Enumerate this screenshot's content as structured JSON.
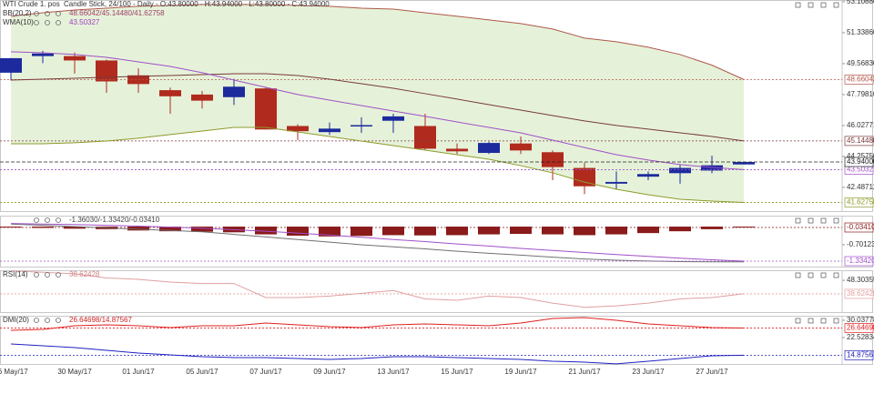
{
  "chart_data": [
    {
      "type": "candlestick",
      "title": "WTI Crude 1. pos",
      "subtitle": "Candle Stick, 24/100 - Daily - O:43.80000 - H:43.94000 - L:43.80000 - C:43.94000",
      "categories": [
        "26 May/17",
        null,
        "30 May/17",
        null,
        "01 Jun/17",
        null,
        "05 Jun/17",
        null,
        "07 Jun/17",
        null,
        "09 Jun/17",
        null,
        "13 Jun/17",
        null,
        "15 Jun/17",
        null,
        "19 Jun/17",
        null,
        "21 Jun/17",
        null,
        "23 Jun/17",
        null,
        "27 Jun/17",
        null
      ],
      "open": [
        49.05,
        50.0,
        50.0,
        49.75,
        48.9,
        48.05,
        47.8,
        47.65,
        48.15,
        46.0,
        45.65,
        46.0,
        46.3,
        46.0,
        44.7,
        44.46,
        45.0,
        44.5,
        43.6,
        42.7,
        43.1,
        43.3,
        43.45,
        43.8
      ],
      "high": [
        49.9,
        50.3,
        50.2,
        49.8,
        49.3,
        48.2,
        48.0,
        48.7,
        48.2,
        46.1,
        46.2,
        46.5,
        46.7,
        46.7,
        45.0,
        45.1,
        45.4,
        44.6,
        43.9,
        43.4,
        43.4,
        43.8,
        44.3,
        43.94
      ],
      "low": [
        48.6,
        49.6,
        49.0,
        47.9,
        47.9,
        46.7,
        47.0,
        47.2,
        45.8,
        45.2,
        45.5,
        45.6,
        45.6,
        44.6,
        44.4,
        44.4,
        44.4,
        42.9,
        42.1,
        42.4,
        42.9,
        42.7,
        43.3,
        43.8
      ],
      "close": [
        49.88,
        50.15,
        49.75,
        48.55,
        48.4,
        47.7,
        47.45,
        48.25,
        45.8,
        45.7,
        45.85,
        46.05,
        46.55,
        44.7,
        44.55,
        45.03,
        44.6,
        43.65,
        42.55,
        42.8,
        43.25,
        43.6,
        43.75,
        43.94
      ],
      "close_value_labels": [
        null,
        null,
        null,
        null,
        null,
        null,
        null,
        null,
        null,
        null,
        null,
        null,
        null,
        null,
        null,
        null,
        null,
        null,
        null,
        null,
        null,
        null,
        null,
        "43.94000"
      ],
      "up_color": "#1c2a9e",
      "down_color": "#b02a1e",
      "close_label_color": "#222222",
      "ylim": [
        41.13,
        53.21
      ],
      "yticks": [
        {
          "value": 53.1088,
          "label": "53.10880"
        },
        {
          "value": 51.3386,
          "label": "51.33860"
        },
        {
          "value": 49.5683,
          "label": "49.56830"
        },
        {
          "value": 47.7981,
          "label": "47.79810"
        },
        {
          "value": 46.02771,
          "label": "46.02771"
        },
        {
          "value": 44.2575,
          "label": "44.25750"
        },
        {
          "value": 42.48712,
          "label": "42.48712"
        }
      ],
      "indicators": [
        {
          "name": "BB(20,2)",
          "readout": "48.66042/45.14480/41.62758",
          "color": "#a0406a",
          "fill": "#e5f2d9",
          "lines": [
            {
              "color": "#b0584a",
              "values": [
                52.28,
                52.48,
                52.64,
                52.74,
                52.85,
                52.9,
                52.95,
                52.95,
                52.95,
                52.9,
                52.85,
                52.74,
                52.69,
                52.48,
                52.28,
                52.07,
                51.86,
                51.55,
                51.03,
                50.82,
                50.51,
                50.09,
                49.48,
                48.66042
              ],
              "value_labels": [
                null,
                null,
                null,
                null,
                null,
                null,
                null,
                null,
                null,
                null,
                null,
                null,
                null,
                null,
                null,
                null,
                null,
                null,
                null,
                null,
                null,
                null,
                null,
                "48.66042"
              ]
            },
            {
              "color": "#7a3a3a",
              "values": [
                48.63,
                48.68,
                48.73,
                48.79,
                48.84,
                48.89,
                48.94,
                48.99,
                48.99,
                48.89,
                48.68,
                48.42,
                48.16,
                47.85,
                47.54,
                47.22,
                46.91,
                46.6,
                46.29,
                46.03,
                45.82,
                45.61,
                45.4,
                45.1448
              ],
              "value_labels": [
                null,
                null,
                null,
                null,
                null,
                null,
                null,
                null,
                null,
                null,
                null,
                null,
                null,
                null,
                null,
                null,
                null,
                null,
                null,
                null,
                null,
                null,
                null,
                "45.14480"
              ]
            },
            {
              "color": "#8f9a2a",
              "values": [
                44.98,
                44.98,
                45.04,
                45.14,
                45.3,
                45.51,
                45.71,
                45.92,
                45.92,
                45.66,
                45.4,
                45.14,
                44.88,
                44.62,
                44.36,
                44.1,
                43.73,
                43.32,
                42.79,
                42.38,
                42.07,
                41.81,
                41.7,
                41.62758
              ],
              "value_labels": [
                null,
                null,
                null,
                null,
                null,
                null,
                null,
                null,
                null,
                null,
                null,
                null,
                null,
                null,
                null,
                null,
                null,
                null,
                null,
                null,
                null,
                null,
                null,
                "41.62758"
              ]
            }
          ]
        },
        {
          "name": "WMA(10)",
          "readout": "43.50327",
          "color": "#a040c0",
          "lines": [
            {
              "color": "#a050c8",
              "values": [
                50.25,
                50.19,
                50.09,
                49.93,
                49.67,
                49.41,
                49.05,
                48.63,
                48.21,
                47.8,
                47.48,
                47.17,
                46.86,
                46.55,
                46.23,
                45.92,
                45.61,
                45.19,
                44.77,
                44.36,
                44.05,
                43.79,
                43.63,
                43.50327
              ],
              "value_labels": [
                null,
                null,
                null,
                null,
                null,
                null,
                null,
                null,
                null,
                null,
                null,
                null,
                null,
                null,
                null,
                null,
                null,
                null,
                null,
                null,
                null,
                null,
                null,
                "43.50327"
              ]
            }
          ]
        }
      ]
    },
    {
      "type": "bar",
      "ylim": [
        -1.545,
        0.423
      ],
      "yticks": [
        {
          "value": -0.70123,
          "label": "-0.70123"
        }
      ],
      "bars": {
        "color": "#8b1a1a",
        "values": [
          -0.02,
          -0.05,
          -0.08,
          -0.1,
          -0.15,
          -0.18,
          -0.2,
          -0.22,
          -0.3,
          -0.35,
          -0.38,
          -0.36,
          -0.33,
          -0.34,
          -0.33,
          -0.3,
          -0.28,
          -0.3,
          -0.33,
          -0.3,
          -0.25,
          -0.18,
          -0.1,
          -0.0341
        ],
        "value_labels": [
          null,
          null,
          null,
          null,
          null,
          null,
          null,
          null,
          null,
          null,
          null,
          null,
          null,
          null,
          null,
          null,
          null,
          null,
          null,
          null,
          null,
          null,
          null,
          "-0.03410"
        ]
      },
      "indicators": [
        {
          "readout": "-1.36030/-1.33420/-0.03410",
          "color": "#444444",
          "lines": [
            {
              "color": "#707070",
              "values": [
                0.1,
                0.05,
                0.0,
                -0.05,
                -0.1,
                -0.15,
                -0.2,
                -0.3,
                -0.4,
                -0.5,
                -0.6,
                -0.7,
                -0.78,
                -0.86,
                -0.95,
                -1.03,
                -1.1,
                -1.18,
                -1.25,
                -1.3,
                -1.33,
                -1.35,
                -1.36,
                -1.3603
              ]
            },
            {
              "color": "#a050c8",
              "values": [
                0.12,
                0.1,
                0.08,
                0.05,
                0.02,
                -0.02,
                -0.06,
                -0.12,
                -0.18,
                -0.25,
                -0.33,
                -0.41,
                -0.5,
                -0.58,
                -0.67,
                -0.75,
                -0.84,
                -0.92,
                -1.0,
                -1.08,
                -1.15,
                -1.22,
                -1.28,
                -1.3342
              ],
              "value_labels": [
                null,
                null,
                null,
                null,
                null,
                null,
                null,
                null,
                null,
                null,
                null,
                null,
                null,
                null,
                null,
                null,
                null,
                null,
                null,
                null,
                null,
                null,
                null,
                "-1.33420"
              ]
            }
          ]
        }
      ]
    },
    {
      "type": "line",
      "ylim": [
        25.55,
        55.5
      ],
      "yticks": [
        {
          "value": 48.30355,
          "label": "48.30355"
        }
      ],
      "indicators": [
        {
          "name": "RSI(14)",
          "readout": "38.62428",
          "color": "#d08080",
          "lines": [
            {
              "color": "#e0a0a0",
              "values": [
                55,
                54,
                53,
                50,
                49,
                47,
                46,
                46,
                36,
                36,
                37,
                39,
                41,
                35,
                34,
                37,
                36,
                32,
                29,
                30,
                32,
                35,
                36,
                38.62428
              ],
              "value_labels": [
                null,
                null,
                null,
                null,
                null,
                null,
                null,
                null,
                null,
                null,
                null,
                null,
                null,
                null,
                null,
                null,
                null,
                null,
                null,
                null,
                null,
                null,
                null,
                "38.62428"
              ]
            }
          ]
        }
      ]
    },
    {
      "type": "line",
      "ylim": [
        11.07,
        32.0
      ],
      "yticks": [
        {
          "value": 30.03778,
          "label": "30.03778"
        },
        {
          "value": 22.52834,
          "label": "22.52834"
        }
      ],
      "indicators": [
        {
          "name": "DMI(20)",
          "readout": "26.64698/14.87567",
          "color": "#d02020",
          "lines": [
            {
              "color": "#e02020",
              "values": [
                25.69,
                26.09,
                27.67,
                28.06,
                27.67,
                26.88,
                27.67,
                27.67,
                28.85,
                28.06,
                27.27,
                26.88,
                28.06,
                28.46,
                28.06,
                27.67,
                28.85,
                30.83,
                31.22,
                30.04,
                28.46,
                27.67,
                26.88,
                26.64698
              ],
              "value_labels": [
                null,
                null,
                null,
                null,
                null,
                null,
                null,
                null,
                null,
                null,
                null,
                null,
                null,
                null,
                null,
                null,
                null,
                null,
                null,
                null,
                null,
                null,
                null,
                "26.64698"
              ]
            },
            {
              "color": "#2020c0",
              "values": [
                19.77,
                18.98,
                18.19,
                17.0,
                15.82,
                15.03,
                14.24,
                13.84,
                13.84,
                13.45,
                13.05,
                13.45,
                14.24,
                14.24,
                13.84,
                13.45,
                13.05,
                12.26,
                11.87,
                11.1,
                12.26,
                13.45,
                14.64,
                14.87567
              ],
              "value_labels": [
                null,
                null,
                null,
                null,
                null,
                null,
                null,
                null,
                null,
                null,
                null,
                null,
                null,
                null,
                null,
                null,
                null,
                null,
                null,
                null,
                null,
                null,
                null,
                "14.87567"
              ]
            }
          ]
        }
      ]
    }
  ]
}
